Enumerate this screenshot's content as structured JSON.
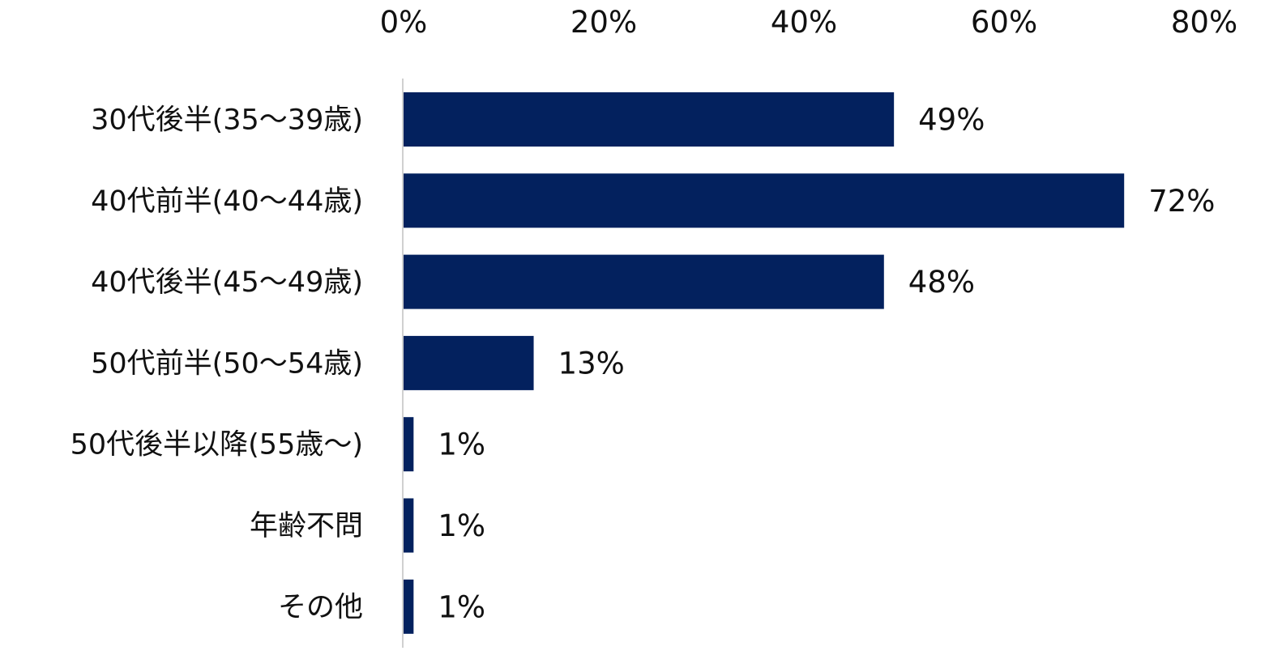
{
  "chart_data": {
    "type": "bar",
    "orientation": "horizontal",
    "categories": [
      "30代後半(35～39歳)",
      "40代前半(40～44歳)",
      "40代後半(45～49歳)",
      "50代前半(50～54歳)",
      "50代後半以降(55歳～)",
      "年齢不問",
      "その他"
    ],
    "values": [
      49,
      72,
      48,
      13,
      1,
      1,
      1
    ],
    "data_labels": [
      "49%",
      "72%",
      "48%",
      "13%",
      "1%",
      "1%",
      "1%"
    ],
    "x_ticks": [
      0,
      20,
      40,
      60,
      80
    ],
    "x_tick_labels": [
      "0%",
      "20%",
      "40%",
      "60%",
      "80%"
    ],
    "xlim": [
      0,
      80
    ],
    "x_axis_position": "top",
    "grid": false,
    "legend": "none",
    "bar_color": "#03215e",
    "axis_color": "#d0d0d0"
  }
}
